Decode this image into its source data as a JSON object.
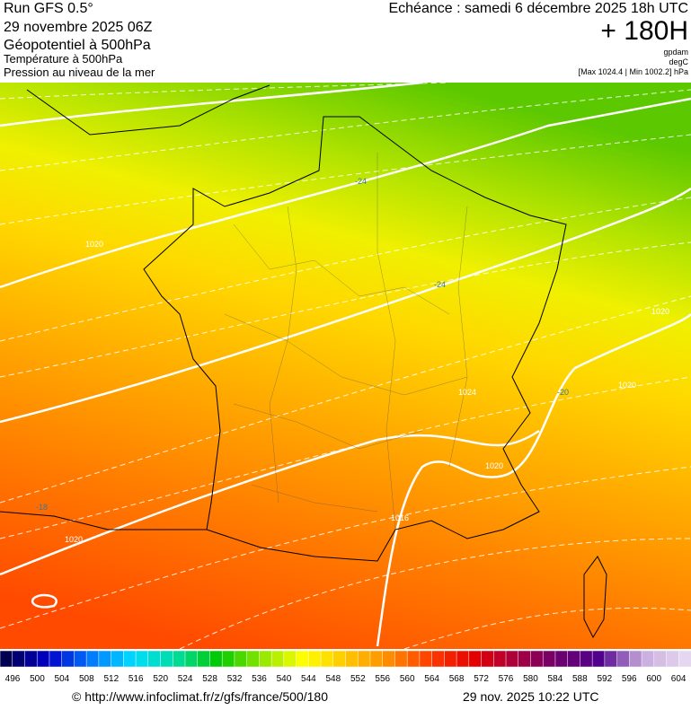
{
  "header": {
    "left": [
      "Run GFS 0.5°",
      "29 novembre 2025 06Z",
      "Géopotentiel à 500hPa",
      "Température à 500hPa",
      "Pression au niveau de la mer"
    ],
    "right": {
      "echeance": "Echéance : samedi 6 décembre 2025 18h UTC",
      "lead": "+ 180H",
      "units": [
        "gpdam",
        "degC",
        "[Max 1024.4 | Min 1002.2] hPa"
      ]
    }
  },
  "map": {
    "contour_labels": [
      "1020",
      "1020",
      "1020",
      "1020",
      "1020",
      "1016",
      "1024",
      "-24",
      "-18",
      "-20",
      "-24"
    ]
  },
  "legend": {
    "labels": [
      496,
      500,
      504,
      508,
      512,
      516,
      520,
      524,
      528,
      532,
      536,
      540,
      544,
      548,
      552,
      556,
      560,
      564,
      568,
      572,
      576,
      580,
      584,
      588,
      592,
      596,
      600,
      604
    ]
  },
  "footer": {
    "url": "© http://www.infoclimat.fr/z/gfs/france/500/180",
    "timestamp": "29 nov. 2025 10:22 UTC"
  }
}
